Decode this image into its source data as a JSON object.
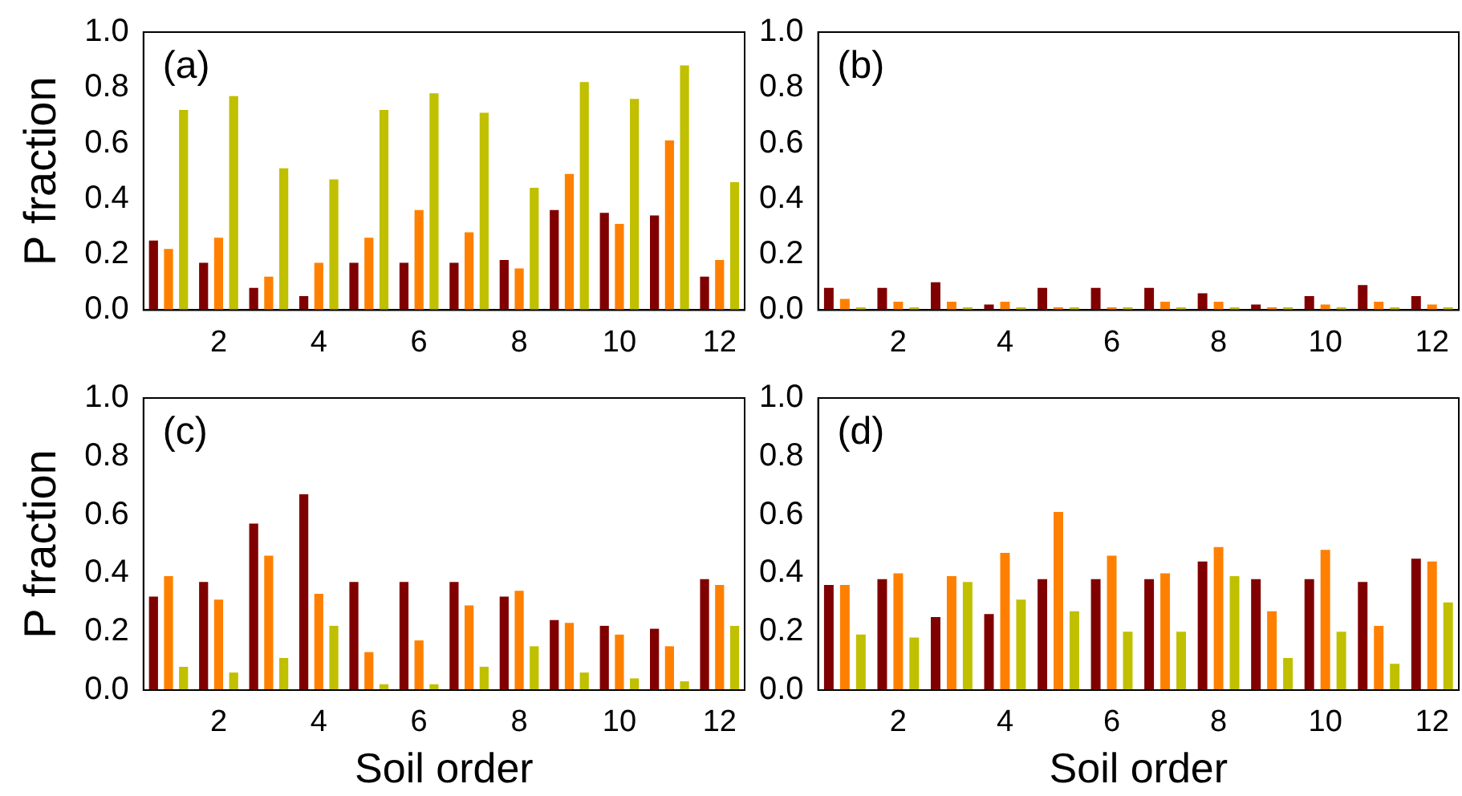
{
  "chart_data": [
    {
      "type": "bar",
      "ylabel": "P fraction",
      "annotations": [
        "(a)"
      ],
      "categories": [
        null,
        "2",
        null,
        "4",
        null,
        "6",
        null,
        "8",
        null,
        "10",
        null,
        "12"
      ],
      "series": [
        {
          "color": "#800000",
          "values": [
            0.25,
            0.17,
            0.08,
            0.05,
            0.17,
            0.17,
            0.17,
            0.18,
            0.36,
            0.35,
            0.34,
            0.12
          ]
        },
        {
          "color": "#ff8000",
          "values": [
            0.22,
            0.26,
            0.12,
            0.17,
            0.26,
            0.36,
            0.28,
            0.15,
            0.49,
            0.31,
            0.61,
            0.18
          ]
        },
        {
          "color": "#c0c000",
          "values": [
            0.72,
            0.77,
            0.51,
            0.47,
            0.72,
            0.78,
            0.71,
            0.44,
            0.82,
            0.76,
            0.88,
            0.46
          ]
        }
      ],
      "ylim": [
        0,
        1
      ],
      "yticks": [
        {
          "value": 0,
          "label": "0.0"
        },
        {
          "value": 0.2,
          "label": "0.2"
        },
        {
          "value": 0.4,
          "label": "0.4"
        },
        {
          "value": 0.6,
          "label": "0.6"
        },
        {
          "value": 0.8,
          "label": "0.8"
        },
        {
          "value": 1,
          "label": "1.0"
        }
      ],
      "grid": false,
      "legend": false
    },
    {
      "type": "bar",
      "annotations": [
        "(b)"
      ],
      "categories": [
        null,
        "2",
        null,
        "4",
        null,
        "6",
        null,
        "8",
        null,
        "10",
        null,
        "12"
      ],
      "series": [
        {
          "color": "#800000",
          "values": [
            0.08,
            0.08,
            0.1,
            0.02,
            0.08,
            0.08,
            0.08,
            0.06,
            0.02,
            0.05,
            0.09,
            0.05
          ]
        },
        {
          "color": "#ff8000",
          "values": [
            0.04,
            0.03,
            0.03,
            0.03,
            0.01,
            0.01,
            0.03,
            0.03,
            0.01,
            0.02,
            0.03,
            0.02
          ]
        },
        {
          "color": "#c0c000",
          "values": [
            0.01,
            0.01,
            0.01,
            0.01,
            0.01,
            0.01,
            0.01,
            0.01,
            0.01,
            0.01,
            0.01,
            0.01
          ]
        }
      ],
      "ylim": [
        0,
        1
      ],
      "yticks": [
        {
          "value": 0,
          "label": "0.0"
        },
        {
          "value": 0.2,
          "label": "0.2"
        },
        {
          "value": 0.4,
          "label": "0.4"
        },
        {
          "value": 0.6,
          "label": "0.6"
        },
        {
          "value": 0.8,
          "label": "0.8"
        },
        {
          "value": 1,
          "label": "1.0"
        }
      ],
      "grid": false,
      "legend": false
    },
    {
      "type": "bar",
      "ylabel": "P fraction",
      "xlabel": "Soil order",
      "annotations": [
        "(c)"
      ],
      "categories": [
        null,
        "2",
        null,
        "4",
        null,
        "6",
        null,
        "8",
        null,
        "10",
        null,
        "12"
      ],
      "series": [
        {
          "color": "#800000",
          "values": [
            0.32,
            0.37,
            0.57,
            0.67,
            0.37,
            0.37,
            0.37,
            0.32,
            0.24,
            0.22,
            0.21,
            0.38
          ]
        },
        {
          "color": "#ff8000",
          "values": [
            0.39,
            0.31,
            0.46,
            0.33,
            0.13,
            0.17,
            0.29,
            0.34,
            0.23,
            0.19,
            0.15,
            0.36
          ]
        },
        {
          "color": "#c0c000",
          "values": [
            0.08,
            0.06,
            0.11,
            0.22,
            0.02,
            0.02,
            0.08,
            0.15,
            0.06,
            0.04,
            0.03,
            0.22
          ]
        }
      ],
      "ylim": [
        0,
        1
      ],
      "yticks": [
        {
          "value": 0,
          "label": "0.0"
        },
        {
          "value": 0.2,
          "label": "0.2"
        },
        {
          "value": 0.4,
          "label": "0.4"
        },
        {
          "value": 0.6,
          "label": "0.6"
        },
        {
          "value": 0.8,
          "label": "0.8"
        },
        {
          "value": 1,
          "label": "1.0"
        }
      ],
      "grid": false,
      "legend": false
    },
    {
      "type": "bar",
      "xlabel": "Soil order",
      "annotations": [
        "(d)"
      ],
      "categories": [
        null,
        "2",
        null,
        "4",
        null,
        "6",
        null,
        "8",
        null,
        "10",
        null,
        "12"
      ],
      "series": [
        {
          "color": "#800000",
          "values": [
            0.36,
            0.38,
            0.25,
            0.26,
            0.38,
            0.38,
            0.38,
            0.44,
            0.38,
            0.38,
            0.37,
            0.45
          ]
        },
        {
          "color": "#ff8000",
          "values": [
            0.36,
            0.4,
            0.39,
            0.47,
            0.61,
            0.46,
            0.4,
            0.49,
            0.27,
            0.48,
            0.22,
            0.44
          ]
        },
        {
          "color": "#c0c000",
          "values": [
            0.19,
            0.18,
            0.37,
            0.31,
            0.27,
            0.2,
            0.2,
            0.39,
            0.11,
            0.2,
            0.09,
            0.3
          ]
        }
      ],
      "ylim": [
        0,
        1
      ],
      "yticks": [
        {
          "value": 0,
          "label": "0.0"
        },
        {
          "value": 0.2,
          "label": "0.2"
        },
        {
          "value": 0.4,
          "label": "0.4"
        },
        {
          "value": 0.6,
          "label": "0.6"
        },
        {
          "value": 0.8,
          "label": "0.8"
        },
        {
          "value": 1,
          "label": "1.0"
        }
      ],
      "grid": false,
      "legend": false
    }
  ]
}
